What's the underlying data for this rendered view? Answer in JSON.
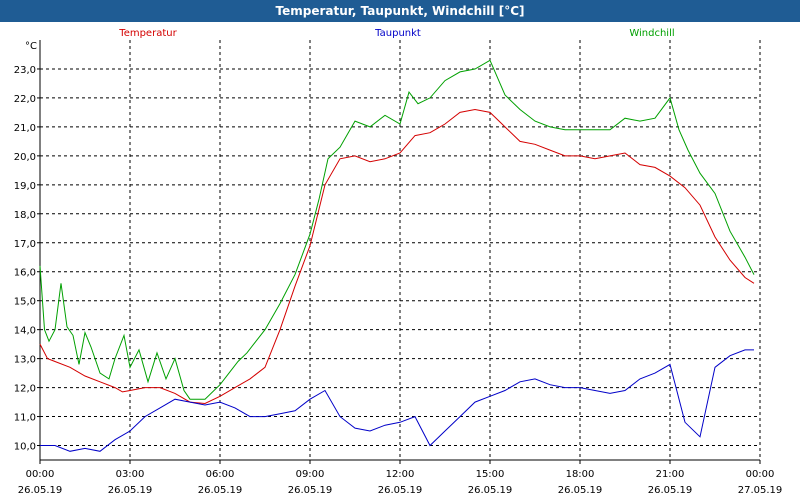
{
  "window": {
    "title": "Temperatur, Taupunkt, Windchill [°C]"
  },
  "colors": {
    "titlebar": "#1f5c94",
    "temperature": "#d40000",
    "dewpoint": "#0000c8",
    "windchill": "#00a000",
    "grid": "#000000"
  },
  "chart_data": {
    "type": "line",
    "title": "Temperatur, Taupunkt, Windchill [°C]",
    "xlabel": "",
    "ylabel": "°C",
    "ylim": [
      9.5,
      24.0
    ],
    "yticks": [
      10.0,
      11.0,
      12.0,
      13.0,
      14.0,
      15.0,
      16.0,
      17.0,
      18.0,
      19.0,
      20.0,
      21.0,
      22.0,
      23.0
    ],
    "ytick_labels": [
      "10,0",
      "11,0",
      "12,0",
      "13,0",
      "14,0",
      "15,0",
      "16,0",
      "17,0",
      "18,0",
      "19,0",
      "20,0",
      "21,0",
      "22,0",
      "23,0"
    ],
    "xlim": [
      0,
      24
    ],
    "xticks": [
      0,
      3,
      6,
      9,
      12,
      15,
      18,
      21,
      24
    ],
    "xtick_times": [
      "00:00",
      "03:00",
      "06:00",
      "09:00",
      "12:00",
      "15:00",
      "18:00",
      "21:00",
      "00:00"
    ],
    "xtick_dates": [
      "26.05.19",
      "26.05.19",
      "26.05.19",
      "26.05.19",
      "26.05.19",
      "26.05.19",
      "26.05.19",
      "26.05.19",
      "27.05.19"
    ],
    "grid": true,
    "legend": "top, inline above plot",
    "series": [
      {
        "name": "Temperatur",
        "x": [
          0,
          0.25,
          0.5,
          1,
          1.5,
          2,
          2.5,
          2.75,
          3,
          3.5,
          4,
          4.5,
          5,
          5.5,
          6,
          6.5,
          7,
          7.5,
          8,
          8.5,
          9,
          9.5,
          10,
          10.5,
          11,
          11.5,
          12,
          12.5,
          13,
          13.5,
          14,
          14.5,
          15,
          15.5,
          16,
          16.5,
          17,
          17.5,
          18,
          18.5,
          19,
          19.5,
          20,
          20.5,
          21,
          21.5,
          22,
          22.5,
          23,
          23.5,
          23.8
        ],
        "values": [
          13.5,
          13.0,
          12.9,
          12.7,
          12.4,
          12.2,
          12.0,
          11.85,
          11.9,
          12.0,
          12.0,
          11.8,
          11.5,
          11.45,
          11.7,
          12.0,
          12.3,
          12.7,
          14.0,
          15.5,
          16.9,
          19.0,
          19.9,
          20.0,
          19.8,
          19.9,
          20.1,
          20.7,
          20.8,
          21.1,
          21.5,
          21.6,
          21.5,
          21.0,
          20.5,
          20.4,
          20.2,
          20.0,
          20.0,
          19.9,
          20.0,
          20.1,
          19.7,
          19.6,
          19.3,
          18.9,
          18.3,
          17.2,
          16.4,
          15.8,
          15.6
        ]
      },
      {
        "name": "Taupunkt",
        "x": [
          0,
          0.5,
          1,
          1.5,
          2,
          2.5,
          3,
          3.5,
          4,
          4.5,
          5,
          5.5,
          6,
          6.5,
          7,
          7.5,
          8,
          8.5,
          9,
          9.5,
          10,
          10.5,
          11,
          11.5,
          12,
          12.5,
          13,
          13.5,
          14,
          14.5,
          15,
          15.5,
          16,
          16.5,
          17,
          17.5,
          18,
          18.5,
          19,
          19.5,
          20,
          20.5,
          21,
          21.5,
          22,
          22.5,
          23,
          23.5,
          23.8
        ],
        "values": [
          10.0,
          10.0,
          9.8,
          9.9,
          9.8,
          10.2,
          10.5,
          11.0,
          11.3,
          11.6,
          11.5,
          11.4,
          11.5,
          11.3,
          11.0,
          11.0,
          11.1,
          11.2,
          11.6,
          11.9,
          11.0,
          10.6,
          10.5,
          10.7,
          10.8,
          11.0,
          10.0,
          10.5,
          11.0,
          11.5,
          11.7,
          11.9,
          12.2,
          12.3,
          12.1,
          12.0,
          12.0,
          11.9,
          11.8,
          11.9,
          12.3,
          12.5,
          12.8,
          10.8,
          10.3,
          12.7,
          13.1,
          13.3,
          13.3
        ]
      },
      {
        "name": "Windchill",
        "x": [
          0,
          0.15,
          0.3,
          0.5,
          0.7,
          0.9,
          1.1,
          1.3,
          1.5,
          1.7,
          2,
          2.3,
          2.5,
          2.8,
          3,
          3.3,
          3.6,
          3.9,
          4.2,
          4.5,
          4.8,
          5,
          5.5,
          6,
          6.3,
          6.6,
          6.9,
          7.2,
          7.5,
          8,
          8.5,
          9,
          9.3,
          9.6,
          10,
          10.5,
          11,
          11.5,
          12,
          12.3,
          12.6,
          13,
          13.5,
          14,
          14.5,
          15,
          15.5,
          16,
          16.5,
          17,
          17.5,
          18,
          18.5,
          19,
          19.5,
          20,
          20.5,
          21,
          21.3,
          21.6,
          22,
          22.5,
          23,
          23.5,
          23.8
        ],
        "values": [
          16.2,
          14.0,
          13.6,
          14.0,
          15.6,
          14.1,
          13.8,
          12.8,
          13.9,
          13.4,
          12.5,
          12.3,
          13.0,
          13.8,
          12.7,
          13.3,
          12.2,
          13.2,
          12.3,
          13.0,
          11.9,
          11.6,
          11.6,
          12.1,
          12.5,
          12.9,
          13.2,
          13.6,
          14.0,
          14.9,
          15.9,
          17.3,
          18.5,
          19.9,
          20.3,
          21.2,
          21.0,
          21.4,
          21.1,
          22.2,
          21.8,
          22.0,
          22.6,
          22.9,
          23.0,
          23.3,
          22.1,
          21.6,
          21.2,
          21.0,
          20.9,
          20.9,
          20.9,
          20.9,
          21.3,
          21.2,
          21.3,
          22.0,
          20.9,
          20.2,
          19.4,
          18.7,
          17.4,
          16.5,
          15.9
        ]
      }
    ]
  }
}
